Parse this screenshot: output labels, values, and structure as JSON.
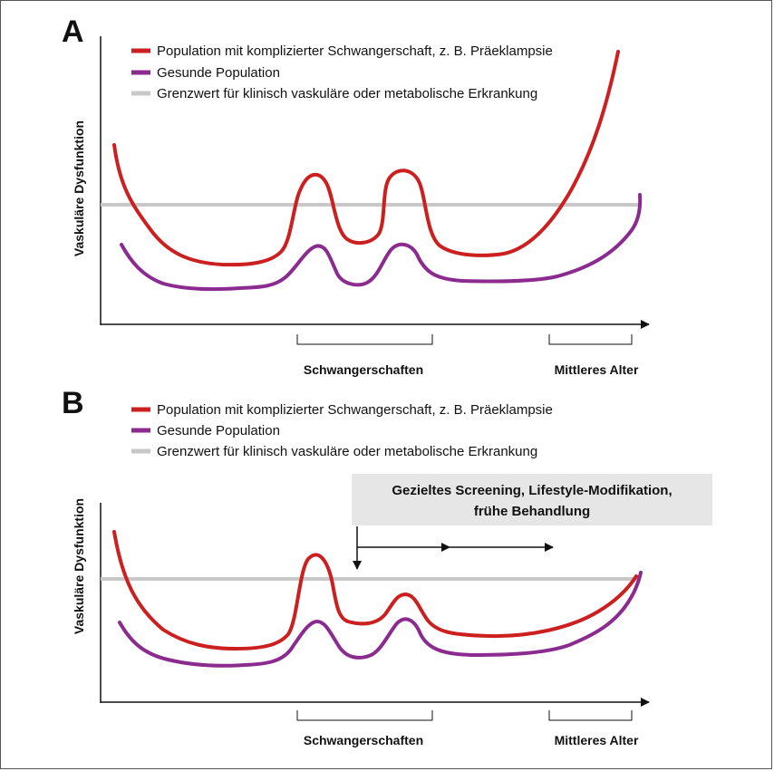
{
  "colors": {
    "complicated": "#cc1f1f",
    "healthy": "#8b2a8f",
    "threshold": "#c8c8c8",
    "axis": "#111111",
    "box": "#e6e6e6"
  },
  "panels": [
    {
      "letter": "A",
      "legend": [
        {
          "label": "Population mit komplizierter Schwangerschaft, z. B. Präeklampsie",
          "series": "complicated"
        },
        {
          "label": "Gesunde Population",
          "series": "healthy"
        },
        {
          "label": "Grenzwert für klinisch vaskuläre oder metabolische Erkrankung",
          "series": "threshold"
        }
      ],
      "ylabel": "Vaskuläre Dysfunktion",
      "brackets": [
        "Schwangerschaften",
        "Mittleres Alter"
      ]
    },
    {
      "letter": "B",
      "legend": [
        {
          "label": "Population mit komplizierter Schwangerschaft, z. B. Präeklampsie",
          "series": "complicated"
        },
        {
          "label": "Gesunde Population",
          "series": "healthy"
        },
        {
          "label": "Grenzwert für klinisch vaskuläre oder metabolische Erkrankung",
          "series": "threshold"
        }
      ],
      "ylabel": "Vaskuläre Dysfunktion",
      "brackets": [
        "Schwangerschaften",
        "Mittleres Alter"
      ],
      "intervention": [
        "Gezieltes Screening, Lifestyle-Modifikation,",
        "frühe Behandlung"
      ]
    }
  ]
}
